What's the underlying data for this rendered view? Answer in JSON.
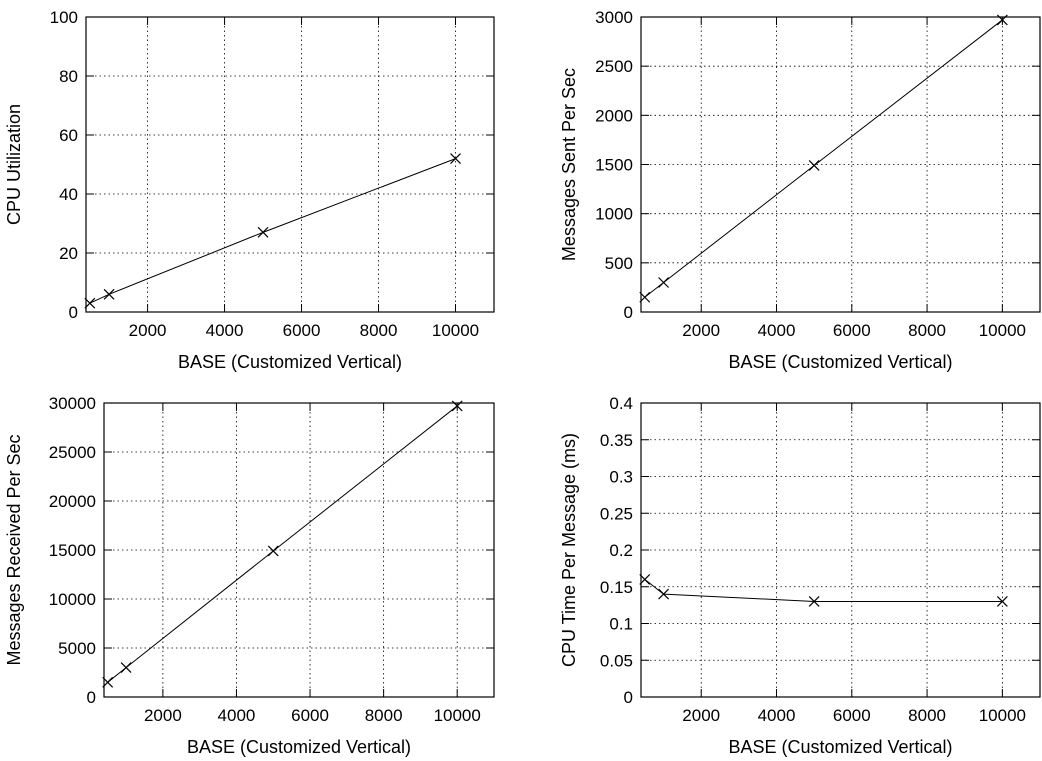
{
  "chart_data": [
    {
      "type": "line",
      "title": "",
      "xlabel": "BASE (Customized Vertical)",
      "ylabel": "CPU Utilization",
      "xlim": [
        400,
        11000
      ],
      "ylim": [
        0,
        100
      ],
      "xticks": [
        2000,
        4000,
        6000,
        8000,
        10000
      ],
      "yticks": [
        0,
        20,
        40,
        60,
        80,
        100
      ],
      "ytick_labels": [
        "0",
        "20",
        "40",
        "60",
        "80",
        "100"
      ],
      "grid": true,
      "marker": "x",
      "series": [
        {
          "x": [
            500,
            1000,
            5000,
            10000
          ],
          "values": [
            3,
            6,
            27,
            52
          ]
        }
      ]
    },
    {
      "type": "line",
      "title": "",
      "xlabel": "BASE (Customized Vertical)",
      "ylabel": "Messages Sent Per Sec",
      "xlim": [
        400,
        11000
      ],
      "ylim": [
        0,
        3000
      ],
      "xticks": [
        2000,
        4000,
        6000,
        8000,
        10000
      ],
      "yticks": [
        0,
        500,
        1000,
        1500,
        2000,
        2500,
        3000
      ],
      "ytick_labels": [
        "0",
        "500",
        "1000",
        "1500",
        "2000",
        "2500",
        "3000"
      ],
      "grid": true,
      "marker": "x",
      "series": [
        {
          "x": [
            500,
            1000,
            5000,
            10000
          ],
          "values": [
            150,
            300,
            1490,
            2970
          ]
        }
      ]
    },
    {
      "type": "line",
      "title": "",
      "xlabel": "BASE (Customized Vertical)",
      "ylabel": "Messages Received Per Sec",
      "xlim": [
        400,
        11000
      ],
      "ylim": [
        0,
        30000
      ],
      "xticks": [
        2000,
        4000,
        6000,
        8000,
        10000
      ],
      "yticks": [
        0,
        5000,
        10000,
        15000,
        20000,
        25000,
        30000
      ],
      "ytick_labels": [
        "0",
        "5000",
        "10000",
        "15000",
        "20000",
        "25000",
        "30000"
      ],
      "grid": true,
      "marker": "x",
      "series": [
        {
          "x": [
            500,
            1000,
            5000,
            10000
          ],
          "values": [
            1500,
            3000,
            14900,
            29700
          ]
        }
      ]
    },
    {
      "type": "line",
      "title": "",
      "xlabel": "BASE (Customized Vertical)",
      "ylabel": "CPU Time Per Message (ms)",
      "xlim": [
        400,
        11000
      ],
      "ylim": [
        0,
        0.4
      ],
      "xticks": [
        2000,
        4000,
        6000,
        8000,
        10000
      ],
      "yticks": [
        0,
        0.05,
        0.1,
        0.15,
        0.2,
        0.25,
        0.3,
        0.35,
        0.4
      ],
      "ytick_labels": [
        "0",
        "0.05",
        "0.1",
        "0.15",
        "0.2",
        "0.25",
        "0.3",
        "0.35",
        "0.4"
      ],
      "grid": true,
      "marker": "x",
      "series": [
        {
          "x": [
            500,
            1000,
            5000,
            10000
          ],
          "values": [
            0.16,
            0.14,
            0.13,
            0.13
          ]
        }
      ]
    }
  ]
}
